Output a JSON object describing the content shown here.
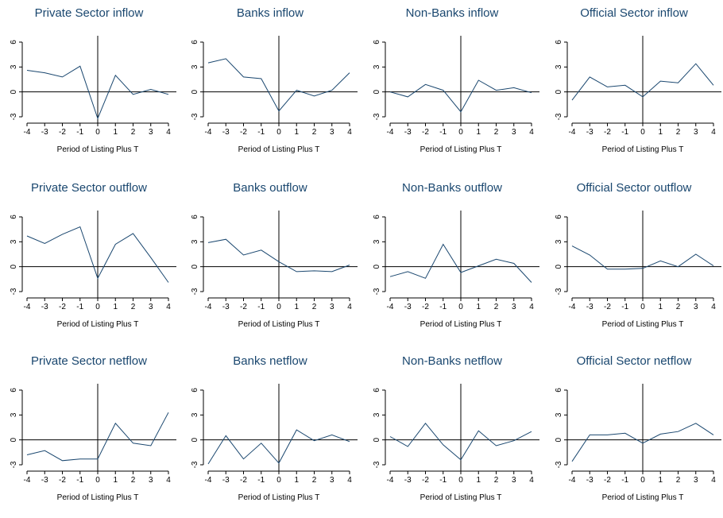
{
  "chart_data": [
    {
      "type": "line",
      "title": "Private Sector inflow",
      "xlabel": "Period of Listing Plus T",
      "ylabel": "",
      "x": [
        -4,
        -3,
        -2,
        -1,
        0,
        1,
        2,
        3,
        4
      ],
      "y": [
        2.6,
        2.3,
        1.8,
        3.1,
        -3.2,
        2.0,
        -0.3,
        0.3,
        -0.3
      ],
      "ylim": [
        -3,
        6
      ],
      "yticks": [
        -3,
        0,
        3,
        6
      ],
      "xticks": [
        -4,
        -3,
        -2,
        -1,
        0,
        1,
        2,
        3,
        4
      ],
      "hline": 0,
      "vline": 0
    },
    {
      "type": "line",
      "title": "Banks inflow",
      "xlabel": "Period of Listing Plus T",
      "ylabel": "",
      "x": [
        -4,
        -3,
        -2,
        -1,
        0,
        1,
        2,
        3,
        4
      ],
      "y": [
        3.5,
        4.0,
        1.8,
        1.6,
        -2.3,
        0.2,
        -0.5,
        0.2,
        2.3
      ],
      "ylim": [
        -3,
        6
      ],
      "yticks": [
        -3,
        0,
        3,
        6
      ],
      "xticks": [
        -4,
        -3,
        -2,
        -1,
        0,
        1,
        2,
        3,
        4
      ],
      "hline": 0,
      "vline": 0
    },
    {
      "type": "line",
      "title": "Non-Banks inflow",
      "xlabel": "Period of Listing Plus T",
      "ylabel": "",
      "x": [
        -4,
        -3,
        -2,
        -1,
        0,
        1,
        2,
        3,
        4
      ],
      "y": [
        0.0,
        -0.6,
        0.9,
        0.2,
        -2.4,
        1.4,
        0.2,
        0.5,
        -0.1
      ],
      "ylim": [
        -3,
        6
      ],
      "yticks": [
        -3,
        0,
        3,
        6
      ],
      "xticks": [
        -4,
        -3,
        -2,
        -1,
        0,
        1,
        2,
        3,
        4
      ],
      "hline": 0,
      "vline": 0
    },
    {
      "type": "line",
      "title": "Official Sector inflow",
      "xlabel": "Period of Listing Plus T",
      "ylabel": "",
      "x": [
        -4,
        -3,
        -2,
        -1,
        0,
        1,
        2,
        3,
        4
      ],
      "y": [
        -1.0,
        1.8,
        0.6,
        0.8,
        -0.6,
        1.3,
        1.1,
        3.4,
        0.8
      ],
      "ylim": [
        -3,
        6
      ],
      "yticks": [
        -3,
        0,
        3,
        6
      ],
      "xticks": [
        -4,
        -3,
        -2,
        -1,
        0,
        1,
        2,
        3,
        4
      ],
      "hline": 0,
      "vline": 0
    },
    {
      "type": "line",
      "title": "Private Sector outflow",
      "xlabel": "Period of Listing Plus T",
      "ylabel": "",
      "x": [
        -4,
        -3,
        -2,
        -1,
        0,
        1,
        2,
        3,
        4
      ],
      "y": [
        3.7,
        2.8,
        3.9,
        4.8,
        -1.4,
        2.7,
        4.0,
        1.1,
        -1.9
      ],
      "ylim": [
        -3,
        6
      ],
      "yticks": [
        -3,
        0,
        3,
        6
      ],
      "xticks": [
        -4,
        -3,
        -2,
        -1,
        0,
        1,
        2,
        3,
        4
      ],
      "hline": 0,
      "vline": 0
    },
    {
      "type": "line",
      "title": "Banks outflow",
      "xlabel": "Period of Listing Plus T",
      "ylabel": "",
      "x": [
        -4,
        -3,
        -2,
        -1,
        0,
        1,
        2,
        3,
        4
      ],
      "y": [
        2.9,
        3.3,
        1.4,
        2.0,
        0.6,
        -0.6,
        -0.5,
        -0.6,
        0.2
      ],
      "ylim": [
        -3,
        6
      ],
      "yticks": [
        -3,
        0,
        3,
        6
      ],
      "xticks": [
        -4,
        -3,
        -2,
        -1,
        0,
        1,
        2,
        3,
        4
      ],
      "hline": 0,
      "vline": 0
    },
    {
      "type": "line",
      "title": "Non-Banks outflow",
      "xlabel": "Period of Listing Plus T",
      "ylabel": "",
      "x": [
        -4,
        -3,
        -2,
        -1,
        0,
        1,
        2,
        3,
        4
      ],
      "y": [
        -1.2,
        -0.6,
        -1.4,
        2.7,
        -0.7,
        0.1,
        0.9,
        0.4,
        -1.9
      ],
      "ylim": [
        -3,
        6
      ],
      "yticks": [
        -3,
        0,
        3,
        6
      ],
      "xticks": [
        -4,
        -3,
        -2,
        -1,
        0,
        1,
        2,
        3,
        4
      ],
      "hline": 0,
      "vline": 0
    },
    {
      "type": "line",
      "title": "Official Sector outflow",
      "xlabel": "Period of Listing Plus T",
      "ylabel": "",
      "x": [
        -4,
        -3,
        -2,
        -1,
        0,
        1,
        2,
        3,
        4
      ],
      "y": [
        2.5,
        1.4,
        -0.3,
        -0.3,
        -0.2,
        0.7,
        0.0,
        1.5,
        0.1
      ],
      "ylim": [
        -3,
        6
      ],
      "yticks": [
        -3,
        0,
        3,
        6
      ],
      "xticks": [
        -4,
        -3,
        -2,
        -1,
        0,
        1,
        2,
        3,
        4
      ],
      "hline": 0,
      "vline": 0
    },
    {
      "type": "line",
      "title": "Private Sector netflow",
      "xlabel": "Period of Listing Plus T",
      "ylabel": "",
      "x": [
        -4,
        -3,
        -2,
        -1,
        0,
        1,
        2,
        3,
        4
      ],
      "y": [
        -1.8,
        -1.3,
        -2.5,
        -2.3,
        -2.3,
        2.0,
        -0.4,
        -0.7,
        3.3
      ],
      "ylim": [
        -3,
        6
      ],
      "yticks": [
        -3,
        0,
        3,
        6
      ],
      "xticks": [
        -4,
        -3,
        -2,
        -1,
        0,
        1,
        2,
        3,
        4
      ],
      "hline": 0,
      "vline": 0
    },
    {
      "type": "line",
      "title": "Banks netflow",
      "xlabel": "Period of Listing Plus T",
      "ylabel": "",
      "x": [
        -4,
        -3,
        -2,
        -1,
        0,
        1,
        2,
        3,
        4
      ],
      "y": [
        -2.9,
        0.5,
        -2.3,
        -0.4,
        -2.8,
        1.2,
        -0.1,
        0.6,
        -0.2
      ],
      "ylim": [
        -3,
        6
      ],
      "yticks": [
        -3,
        0,
        3,
        6
      ],
      "xticks": [
        -4,
        -3,
        -2,
        -1,
        0,
        1,
        2,
        3,
        4
      ],
      "hline": 0,
      "vline": 0
    },
    {
      "type": "line",
      "title": "Non-Banks netflow",
      "xlabel": "Period of Listing Plus T",
      "ylabel": "",
      "x": [
        -4,
        -3,
        -2,
        -1,
        0,
        1,
        2,
        3,
        4
      ],
      "y": [
        0.4,
        -0.8,
        2.0,
        -0.6,
        -2.4,
        1.1,
        -0.7,
        -0.1,
        1.0
      ],
      "ylim": [
        -3,
        6
      ],
      "yticks": [
        -3,
        0,
        3,
        6
      ],
      "xticks": [
        -4,
        -3,
        -2,
        -1,
        0,
        1,
        2,
        3,
        4
      ],
      "hline": 0,
      "vline": 0
    },
    {
      "type": "line",
      "title": "Official Sector netflow",
      "xlabel": "Period of Listing Plus T",
      "ylabel": "",
      "x": [
        -4,
        -3,
        -2,
        -1,
        0,
        1,
        2,
        3,
        4
      ],
      "y": [
        -2.6,
        0.6,
        0.6,
        0.8,
        -0.4,
        0.7,
        1.0,
        2.0,
        0.6
      ],
      "ylim": [
        -3,
        6
      ],
      "yticks": [
        -3,
        0,
        3,
        6
      ],
      "xticks": [
        -4,
        -3,
        -2,
        -1,
        0,
        1,
        2,
        3,
        4
      ],
      "hline": 0,
      "vline": 0
    }
  ],
  "colors": {
    "line": "#1a476f",
    "title": "#1a476f",
    "axis": "#000000"
  }
}
